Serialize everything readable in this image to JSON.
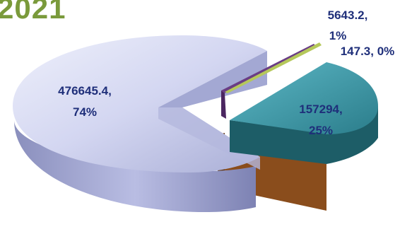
{
  "chart_data": {
    "type": "pie",
    "title": "2021",
    "slices": [
      {
        "value": 476645.4,
        "percent_label": "74%",
        "value_label": "476645.4,",
        "color": "#c9cdee"
      },
      {
        "value": 157294,
        "percent_label": "25%",
        "value_label": "157294,",
        "color": "#3a97a6"
      },
      {
        "value": 5643.2,
        "percent_label": "1%",
        "value_label": "5643.2,",
        "color": "#6a3d84"
      },
      {
        "value": 147.3,
        "percent_label": "147.3, 0%",
        "value_label": "147.3, 0%",
        "color": "#b5c85a"
      }
    ],
    "extra_wedge_color": "#8a4d1c"
  }
}
